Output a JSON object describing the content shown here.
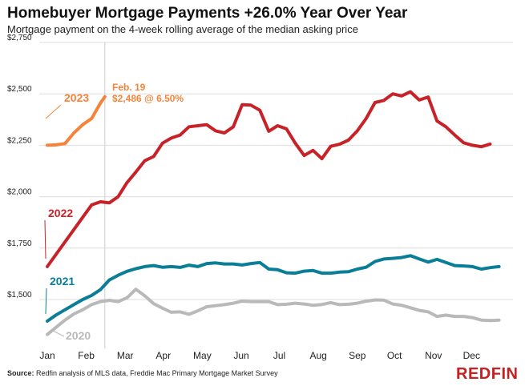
{
  "title": "Homebuyer Mortgage Payments +26.0% Year Over Year",
  "subtitle": "Mortgage payment on the 4-week rolling average of the median asking price",
  "source_label": "Source:",
  "source_text": " Redfin analysis of MLS data, Freddie Mac Primary Mortgage Market Survey",
  "logo": "REDFIN",
  "colors": {
    "2020": "#b9b9b9",
    "2021": "#0a7d97",
    "2022": "#c82229",
    "2023": "#f5843a",
    "grid": "#dddddd",
    "marker": "#cccccc"
  },
  "chart_data": {
    "type": "line",
    "title": "Homebuyer Mortgage Payments +26.0% Year Over Year",
    "subtitle": "Mortgage payment on the 4-week rolling average of the median asking price",
    "xlabel": "",
    "ylabel": "",
    "x_unit": "week of year",
    "xlim": [
      1,
      53
    ],
    "ylim": [
      1250,
      2750
    ],
    "y_ticks": [
      {
        "value": 2750,
        "label": "$2,750"
      },
      {
        "value": 2500,
        "label": "$2,500"
      },
      {
        "value": 2250,
        "label": "$2,250"
      },
      {
        "value": 2000,
        "label": "$2,000"
      },
      {
        "value": 1750,
        "label": "$1,750"
      },
      {
        "value": 1500,
        "label": "$1,500"
      }
    ],
    "x_ticks": [
      {
        "value": 1.0,
        "label": "Jan"
      },
      {
        "value": 5.4,
        "label": "Feb"
      },
      {
        "value": 9.8,
        "label": "Mar"
      },
      {
        "value": 14.1,
        "label": "Apr"
      },
      {
        "value": 18.5,
        "label": "May"
      },
      {
        "value": 22.9,
        "label": "Jun"
      },
      {
        "value": 27.2,
        "label": "Jul"
      },
      {
        "value": 31.6,
        "label": "Aug"
      },
      {
        "value": 36.0,
        "label": "Sep"
      },
      {
        "value": 40.2,
        "label": "Oct"
      },
      {
        "value": 44.6,
        "label": "Nov"
      },
      {
        "value": 48.9,
        "label": "Dec"
      }
    ],
    "grid": "horizontal",
    "reference_line_week": 7.5,
    "series": [
      {
        "name": "2020",
        "color_key": "2020",
        "x": [
          1,
          2,
          3,
          4,
          5,
          6,
          7,
          8,
          9,
          10,
          11,
          12,
          13,
          14,
          15,
          16,
          17,
          18,
          19,
          20,
          21,
          22,
          23,
          24,
          25,
          26,
          27,
          28,
          29,
          30,
          31,
          32,
          33,
          34,
          35,
          36,
          37,
          38,
          39,
          40,
          41,
          42,
          43,
          44,
          45,
          46,
          47,
          48,
          49,
          50,
          51,
          52
        ],
        "y": [
          1330,
          1365,
          1400,
          1430,
          1450,
          1475,
          1490,
          1496,
          1490,
          1508,
          1550,
          1518,
          1480,
          1458,
          1438,
          1440,
          1428,
          1445,
          1465,
          1470,
          1475,
          1482,
          1492,
          1490,
          1490,
          1490,
          1475,
          1477,
          1482,
          1478,
          1472,
          1476,
          1485,
          1475,
          1477,
          1482,
          1492,
          1498,
          1497,
          1478,
          1472,
          1460,
          1447,
          1440,
          1418,
          1424,
          1418,
          1418,
          1412,
          1400,
          1398,
          1400
        ]
      },
      {
        "name": "2021",
        "color_key": "2021",
        "x": [
          1,
          2,
          3,
          4,
          5,
          6,
          7,
          8,
          9,
          10,
          11,
          12,
          13,
          14,
          15,
          16,
          17,
          18,
          19,
          20,
          21,
          22,
          23,
          24,
          25,
          26,
          27,
          28,
          29,
          30,
          31,
          32,
          33,
          34,
          35,
          36,
          37,
          38,
          39,
          40,
          41,
          42,
          43,
          44,
          45,
          46,
          47,
          48,
          49,
          50,
          51,
          52
        ],
        "y": [
          1395,
          1425,
          1450,
          1475,
          1500,
          1520,
          1548,
          1595,
          1618,
          1637,
          1650,
          1660,
          1665,
          1657,
          1660,
          1656,
          1667,
          1660,
          1675,
          1678,
          1673,
          1673,
          1668,
          1675,
          1680,
          1648,
          1645,
          1630,
          1628,
          1638,
          1641,
          1628,
          1628,
          1633,
          1635,
          1648,
          1657,
          1685,
          1697,
          1700,
          1704,
          1713,
          1697,
          1682,
          1695,
          1680,
          1665,
          1663,
          1660,
          1648,
          1655,
          1660
        ]
      },
      {
        "name": "2022",
        "color_key": "2022",
        "x": [
          1,
          2,
          3,
          4,
          5,
          6,
          7,
          8,
          9,
          10,
          11,
          12,
          13,
          14,
          15,
          16,
          17,
          18,
          19,
          20,
          21,
          22,
          23,
          24,
          25,
          26,
          27,
          28,
          29,
          30,
          31,
          32,
          33,
          34,
          35,
          36,
          37,
          38,
          39,
          40,
          41,
          42,
          43,
          44,
          45,
          46,
          47,
          48,
          49,
          50,
          51
        ],
        "y": [
          1660,
          1720,
          1780,
          1840,
          1900,
          1960,
          1975,
          1970,
          2000,
          2068,
          2120,
          2175,
          2195,
          2260,
          2285,
          2300,
          2340,
          2345,
          2350,
          2320,
          2310,
          2340,
          2447,
          2445,
          2420,
          2318,
          2345,
          2330,
          2260,
          2200,
          2225,
          2185,
          2245,
          2255,
          2275,
          2320,
          2380,
          2458,
          2468,
          2500,
          2490,
          2510,
          2470,
          2485,
          2368,
          2340,
          2300,
          2262,
          2250,
          2243,
          2256
        ]
      },
      {
        "name": "2023",
        "color_key": "2023",
        "x": [
          1,
          2,
          3,
          4,
          5,
          6,
          7,
          7.5
        ],
        "y": [
          2250,
          2252,
          2258,
          2310,
          2350,
          2380,
          2455,
          2486
        ]
      }
    ],
    "series_labels": [
      {
        "series": "2023",
        "text": "2023",
        "at_x": 1.0,
        "at_y": 2415
      },
      {
        "series": "2022",
        "text": "2022",
        "at_x": 1.0,
        "at_y": 1852
      },
      {
        "series": "2021",
        "text": "2021",
        "at_x": 1.0,
        "at_y": 1470
      },
      {
        "series": "2020",
        "text": "2020",
        "at_x": 1.8,
        "at_y": 1285
      }
    ],
    "annotation": {
      "line1": "Feb. 19",
      "line2": "$2,486 @ 6.50%",
      "series": "2023",
      "week": 7.5,
      "value": 2486
    }
  }
}
